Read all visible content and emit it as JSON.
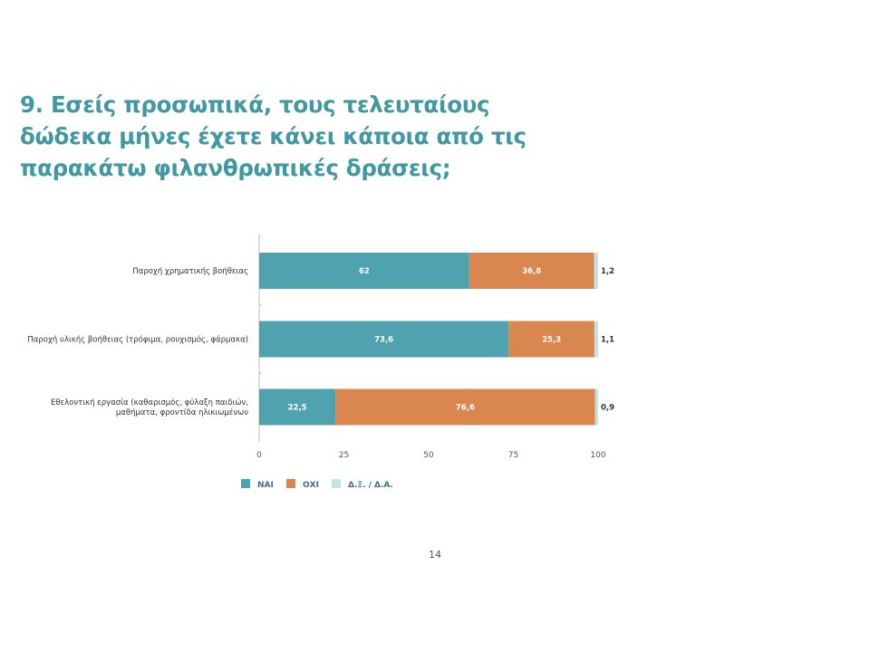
{
  "slide": {
    "title": "9. Εσείς προσωπικά, τους τελευταίους δώδεκα μήνες έχετε κάνει κάποια από τις παρακάτω φιλανθρωπικές δράσεις;",
    "page_number": "14"
  },
  "chart_data": {
    "type": "bar",
    "orientation": "horizontal",
    "stacked": true,
    "categories": [
      [
        "Παροχή χρηματικής βοήθειας"
      ],
      [
        "Παροχή υλικής βοήθειας (τρόφιμα, ρουχισμός, φάρμακα)"
      ],
      [
        "Εθελοντική εργασία (καθαρισμός, φύλαξη παιδιών,",
        "μαθήματα, φροντίδα ηλικιωμένων"
      ]
    ],
    "series": [
      {
        "name": "ΝΑΙ",
        "color": "#4ea3ae",
        "values": [
          62,
          73.6,
          22.5
        ],
        "labels": [
          "62",
          "73,6",
          "22,5"
        ]
      },
      {
        "name": "ΟΧΙ",
        "color": "#d9874e",
        "values": [
          36.8,
          25.3,
          76.6
        ],
        "labels": [
          "36,8",
          "25,3",
          "76,6"
        ]
      },
      {
        "name": "Δ.Ξ. / Δ.Α.",
        "color": "#c5e3e6",
        "values": [
          1.2,
          1.1,
          0.9
        ],
        "labels": [
          "1,2",
          "1,1",
          "0,9"
        ]
      }
    ],
    "x_ticks": [
      "0",
      "25",
      "50",
      "75",
      "100"
    ],
    "xlim": [
      0,
      100
    ],
    "grid": false,
    "legend_position": "bottom-left"
  }
}
